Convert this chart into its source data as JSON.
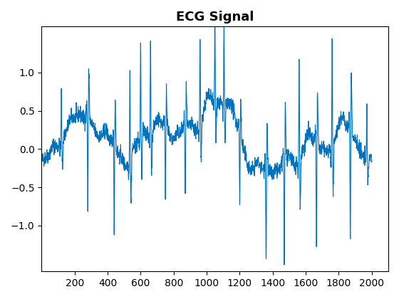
{
  "title": "ECG Signal",
  "line_color": "#0072BD",
  "line_width": 0.8,
  "xlim": [
    0,
    2100
  ],
  "xticks": [
    200,
    400,
    600,
    800,
    1000,
    1200,
    1400,
    1600,
    1800,
    2000
  ],
  "ylim": [
    -1.6,
    1.6
  ],
  "yticks": [
    -1.0,
    -0.5,
    0.0,
    0.5,
    1.0
  ],
  "figsize": [
    5.6,
    4.2
  ],
  "dpi": 100,
  "seed": 42,
  "n_points": 2000
}
